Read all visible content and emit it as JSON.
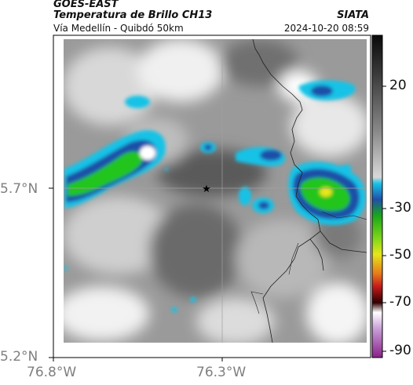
{
  "header": {
    "satellite": "GOES-EAST",
    "product": "Temperatura de Brillo CH13",
    "route": "Vía Medellín - Quibdó 50km",
    "agency": "SIATA",
    "datetime": "2024-10-20 08:59"
  },
  "map": {
    "x_ticks": [
      "76.8°W",
      "76.3°W"
    ],
    "y_ticks": [
      "5.7°N",
      "5.2°N"
    ],
    "marker": "star-marker"
  },
  "colorbar": {
    "labels": [
      "20",
      "-30",
      "-50",
      "-70",
      "-90"
    ],
    "values": [
      20,
      -30,
      -50,
      -70,
      -90
    ]
  },
  "colors": {
    "cold_blue": "#1f4fa8",
    "cyan": "#19c2e6",
    "green": "#22c51f",
    "yellow": "#e6e61a"
  }
}
